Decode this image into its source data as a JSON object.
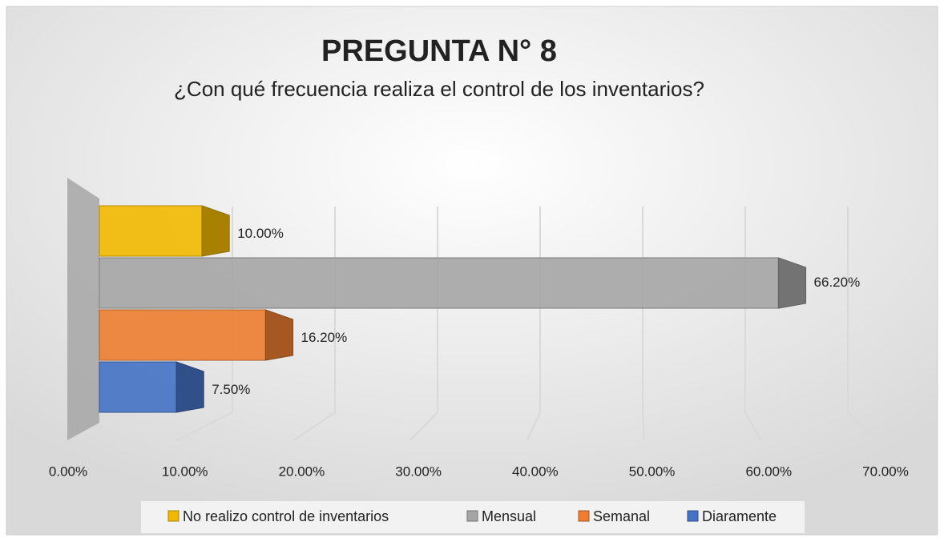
{
  "chart_data": {
    "type": "bar3d_horizontal",
    "title": "PREGUNTA N° 8",
    "subtitle": "¿Con qué frecuencia realiza el control de los inventarios?",
    "series": [
      {
        "name": "No realizo control de inventarios",
        "color": "#f2b800",
        "values": [
          10.0
        ],
        "value_labels": [
          "10.00%"
        ]
      },
      {
        "name": "Mensual",
        "color": "#a5a5a5",
        "values": [
          66.2
        ],
        "value_labels": [
          "66.20%"
        ]
      },
      {
        "name": "Semanal",
        "color": "#ed7d31",
        "values": [
          16.2
        ],
        "value_labels": [
          "16.20%"
        ]
      },
      {
        "name": "Diaramente",
        "color": "#4472c4",
        "values": [
          7.5
        ],
        "value_labels": [
          "7.50%"
        ]
      }
    ],
    "xlim": [
      0,
      70
    ],
    "xticks": [
      {
        "value": 0,
        "label": "0.00%"
      },
      {
        "value": 10,
        "label": "10.00%"
      },
      {
        "value": 20,
        "label": "20.00%"
      },
      {
        "value": 30,
        "label": "30.00%"
      },
      {
        "value": 40,
        "label": "40.00%"
      },
      {
        "value": 50,
        "label": "50.00%"
      },
      {
        "value": 60,
        "label": "60.00%"
      },
      {
        "value": 70,
        "label": "70.00%"
      }
    ],
    "grid": true,
    "legend": "bottom"
  }
}
